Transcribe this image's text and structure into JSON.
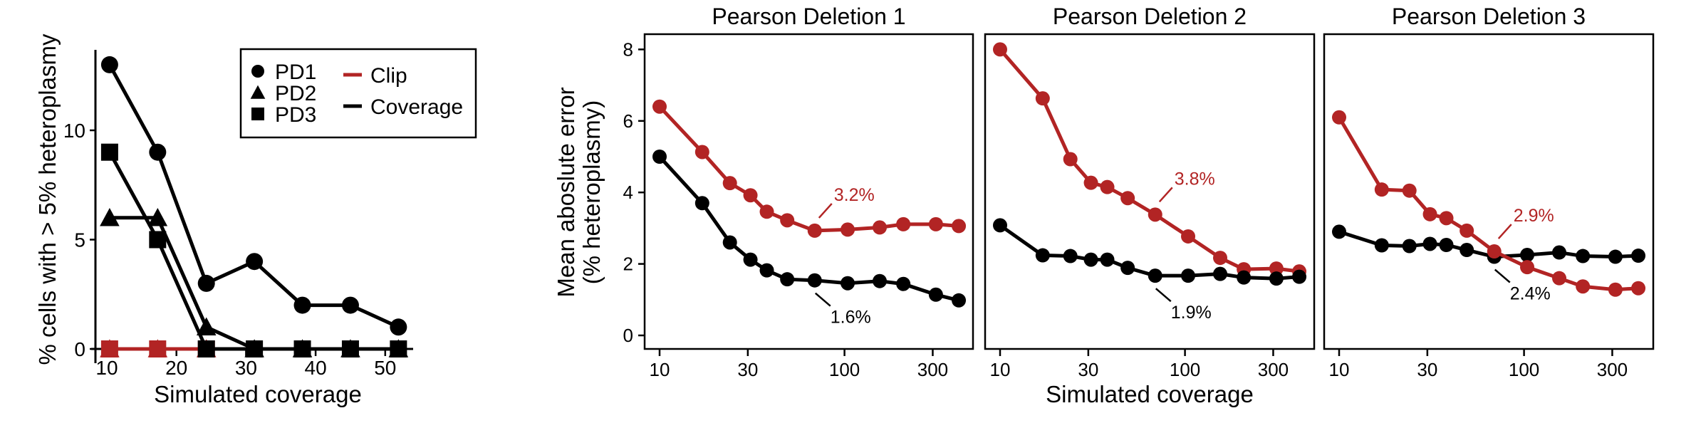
{
  "colors": {
    "clip": "#B22424",
    "coverage": "#000000"
  },
  "chart_data": [
    {
      "id": "left",
      "type": "line",
      "title": "",
      "xlabel": "Simulated coverage",
      "ylabel": "% cells with > 5% heteroplasmy",
      "xlim": [
        8.5,
        55
      ],
      "ylim": [
        -0.5,
        13.7
      ],
      "xticks": [
        10,
        20,
        30,
        40,
        50
      ],
      "yticks": [
        0,
        5,
        10
      ],
      "x": [
        10.4,
        17.3,
        24.3,
        31.2,
        38.1,
        45.0,
        51.9
      ],
      "series": [
        {
          "name": "PD1",
          "method": "Coverage",
          "marker": "circle",
          "values": [
            13,
            9,
            3,
            4,
            2,
            2,
            1
          ]
        },
        {
          "name": "PD2",
          "method": "Coverage",
          "marker": "triangle",
          "values": [
            6,
            6,
            1,
            0,
            0,
            0,
            0
          ]
        },
        {
          "name": "PD3",
          "method": "Coverage",
          "marker": "square",
          "values": [
            9,
            5,
            0,
            0,
            0,
            0,
            0
          ]
        },
        {
          "name": "PD1",
          "method": "Clip",
          "marker": "circle",
          "values": [
            0,
            0,
            0,
            0,
            0,
            0,
            0
          ]
        },
        {
          "name": "PD2",
          "method": "Clip",
          "marker": "triangle",
          "values": [
            0,
            0,
            0,
            0,
            0,
            0,
            0
          ]
        },
        {
          "name": "PD3",
          "method": "Clip",
          "marker": "square",
          "values": [
            0,
            0,
            0,
            0,
            0,
            0,
            0
          ]
        }
      ],
      "legend": {
        "position": "top-right",
        "shapes": [
          {
            "label": "PD1",
            "marker": "circle"
          },
          {
            "label": "PD2",
            "marker": "triangle"
          },
          {
            "label": "PD3",
            "marker": "square"
          }
        ],
        "lines": [
          {
            "label": "Clip",
            "method": "Clip"
          },
          {
            "label": "Coverage",
            "method": "Coverage"
          }
        ]
      }
    },
    {
      "id": "pd1",
      "type": "line",
      "title": "Pearson Deletion 1",
      "xscale": "log",
      "xlim": [
        8.4,
        530
      ],
      "ylim": [
        -0.35,
        8.4
      ],
      "xticks": [
        10,
        30,
        100,
        300
      ],
      "yticks": [
        0,
        2,
        4,
        6,
        8
      ],
      "x": [
        10,
        17,
        24,
        31,
        38,
        49,
        69,
        104,
        155,
        208,
        312,
        415
      ],
      "series": [
        {
          "name": "Clip",
          "values": [
            6.4,
            5.13,
            4.26,
            3.92,
            3.46,
            3.22,
            2.93,
            2.96,
            3.02,
            3.11,
            3.11,
            3.06
          ]
        },
        {
          "name": "Coverage",
          "values": [
            5.0,
            3.7,
            2.6,
            2.12,
            1.82,
            1.57,
            1.54,
            1.46,
            1.52,
            1.44,
            1.14,
            0.98
          ]
        }
      ],
      "annotations": [
        {
          "text": "3.2%",
          "series": "Clip",
          "at_index": 6,
          "direction": "up"
        },
        {
          "text": "1.6%",
          "series": "Coverage",
          "at_index": 6,
          "direction": "down"
        }
      ]
    },
    {
      "id": "pd2",
      "type": "line",
      "title": "Pearson Deletion 2",
      "xscale": "log",
      "xlim": [
        8.4,
        530
      ],
      "ylim": [
        -0.35,
        8.4
      ],
      "xticks": [
        10,
        30,
        100,
        300
      ],
      "yticks": [],
      "x": [
        10,
        17,
        24,
        31,
        38,
        49,
        69,
        104,
        155,
        208,
        312,
        415
      ],
      "series": [
        {
          "name": "Clip",
          "values": [
            8.0,
            6.63,
            4.93,
            4.27,
            4.15,
            3.84,
            3.38,
            2.77,
            2.17,
            1.85,
            1.87,
            1.79
          ]
        },
        {
          "name": "Coverage",
          "values": [
            3.08,
            2.24,
            2.22,
            2.12,
            2.12,
            1.89,
            1.67,
            1.67,
            1.72,
            1.62,
            1.59,
            1.64
          ]
        }
      ],
      "annotations": [
        {
          "text": "3.8%",
          "series": "Clip",
          "at_index": 6,
          "direction": "up"
        },
        {
          "text": "1.9%",
          "series": "Coverage",
          "at_index": 6,
          "direction": "down"
        }
      ]
    },
    {
      "id": "pd3",
      "type": "line",
      "title": "Pearson Deletion 3",
      "xscale": "log",
      "xlim": [
        8.4,
        530
      ],
      "ylim": [
        -0.35,
        8.4
      ],
      "xticks": [
        10,
        30,
        100,
        300
      ],
      "yticks": [],
      "x": [
        10,
        17,
        24,
        31,
        38,
        49,
        69,
        104,
        155,
        208,
        312,
        415
      ],
      "series": [
        {
          "name": "Clip",
          "values": [
            6.1,
            4.08,
            4.05,
            3.39,
            3.28,
            2.93,
            2.35,
            1.91,
            1.6,
            1.37,
            1.28,
            1.32
          ]
        },
        {
          "name": "Coverage",
          "values": [
            2.9,
            2.52,
            2.5,
            2.56,
            2.53,
            2.39,
            2.2,
            2.25,
            2.32,
            2.22,
            2.2,
            2.23
          ]
        }
      ],
      "annotations": [
        {
          "text": "2.9%",
          "series": "Clip",
          "at_index": 6,
          "direction": "up"
        },
        {
          "text": "2.4%",
          "series": "Coverage",
          "at_index": 6,
          "direction": "down"
        }
      ]
    }
  ],
  "shared": {
    "ylabel_line1": "Mean aboslute error",
    "ylabel_line2": "(% heteroplasmy)",
    "xlabel": "Simulated coverage"
  }
}
